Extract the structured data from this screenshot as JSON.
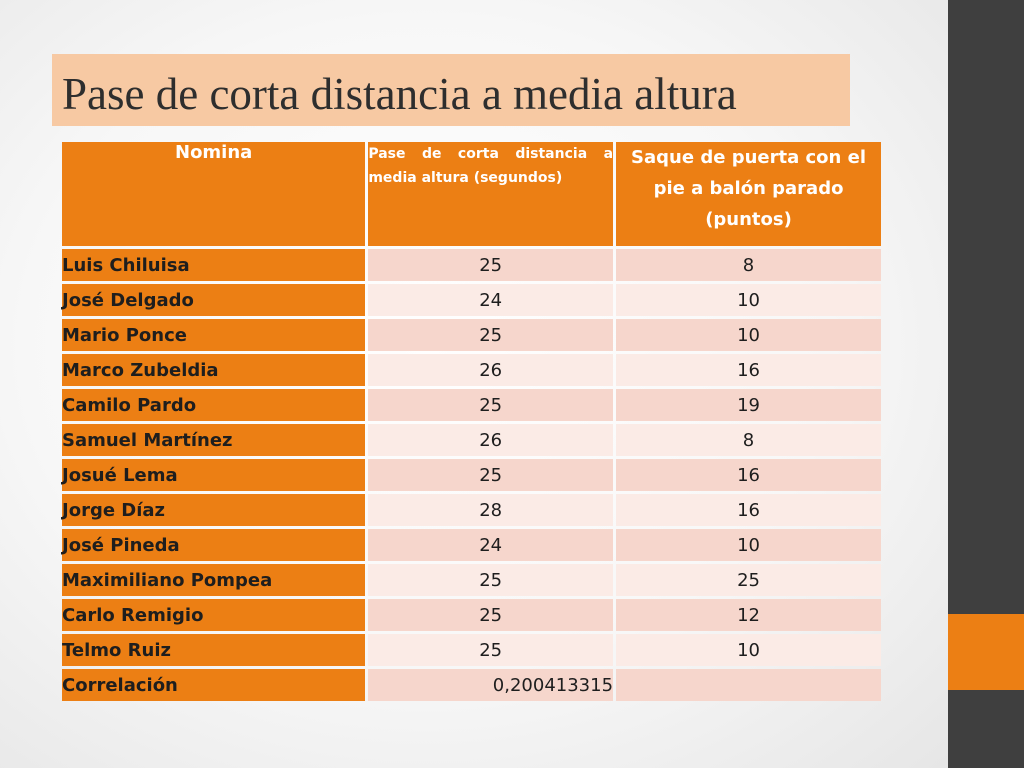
{
  "slide": {
    "title": "Pase de corta distancia a media altura",
    "colors": {
      "accent": "#ec7f14",
      "title_band": "#f7c9a3",
      "side_bar": "#3f3f3f",
      "row_odd": "#f6d6cc",
      "row_even": "#fbebe6"
    }
  },
  "table": {
    "headers": {
      "name": "Nomina",
      "pass": "Pase de corta distancia a media altura (segundos)",
      "kick": "Saque de puerta con el pie  a balón parado (puntos)"
    },
    "rows": [
      {
        "name": "Luis Chiluisa",
        "pass": "25",
        "kick": "8"
      },
      {
        "name": "José Delgado",
        "pass": "24",
        "kick": "10"
      },
      {
        "name": "Mario Ponce",
        "pass": "25",
        "kick": "10"
      },
      {
        "name": "Marco Zubeldia",
        "pass": "26",
        "kick": "16"
      },
      {
        "name": "Camilo Pardo",
        "pass": "25",
        "kick": "19"
      },
      {
        "name": "Samuel Martínez",
        "pass": "26",
        "kick": "8"
      },
      {
        "name": "Josué Lema",
        "pass": "25",
        "kick": "16"
      },
      {
        "name": "Jorge Díaz",
        "pass": "28",
        "kick": "16"
      },
      {
        "name": "José Pineda",
        "pass": "24",
        "kick": "10"
      },
      {
        "name": "Maximiliano Pompea",
        "pass": "25",
        "kick": "25"
      },
      {
        "name": "Carlo Remigio",
        "pass": "25",
        "kick": "12"
      },
      {
        "name": "Telmo Ruiz",
        "pass": "25",
        "kick": "10"
      }
    ],
    "correlation": {
      "label": "Correlación",
      "value": "0,200413315",
      "kick": ""
    }
  }
}
